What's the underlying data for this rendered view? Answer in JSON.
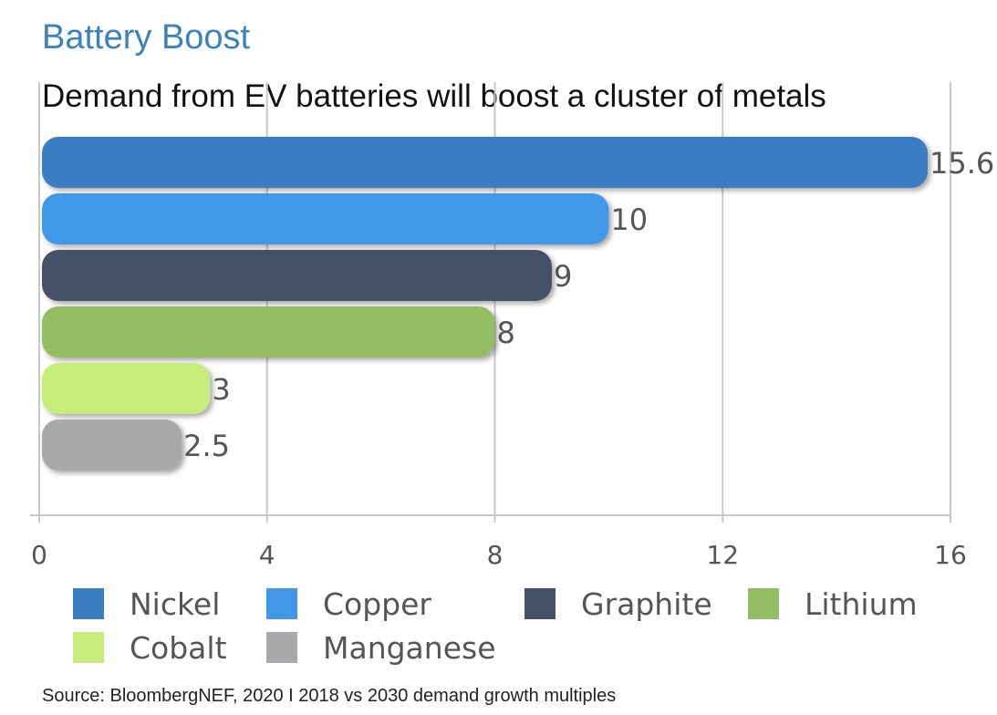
{
  "chart_data": {
    "type": "bar",
    "orientation": "horizontal",
    "title": "Battery Boost",
    "subtitle": "Demand from EV batteries will boost a cluster of metals",
    "categories": [
      "Nickel",
      "Copper",
      "Graphite",
      "Lithium",
      "Cobalt",
      "Manganese"
    ],
    "values": [
      15.6,
      10,
      9,
      8,
      3,
      2.5
    ],
    "value_labels": [
      "15.6",
      "10",
      "9",
      "8",
      "3",
      "2.5"
    ],
    "colors": [
      "#3a7dc2",
      "#4397e8",
      "#445166",
      "#93bd62",
      "#c6ec7c",
      "#a9a9ab"
    ],
    "xlim": [
      0,
      16
    ],
    "xticks": [
      0,
      4,
      8,
      12,
      16
    ],
    "xtick_labels": [
      "0",
      "4",
      "8",
      "12",
      "16"
    ],
    "grid": true,
    "legend_placement": "bottom",
    "xlabel": "",
    "ylabel": ""
  },
  "source": "Source: BloombergNEF, 2020 I 2018 vs 2030 demand growth multiples"
}
